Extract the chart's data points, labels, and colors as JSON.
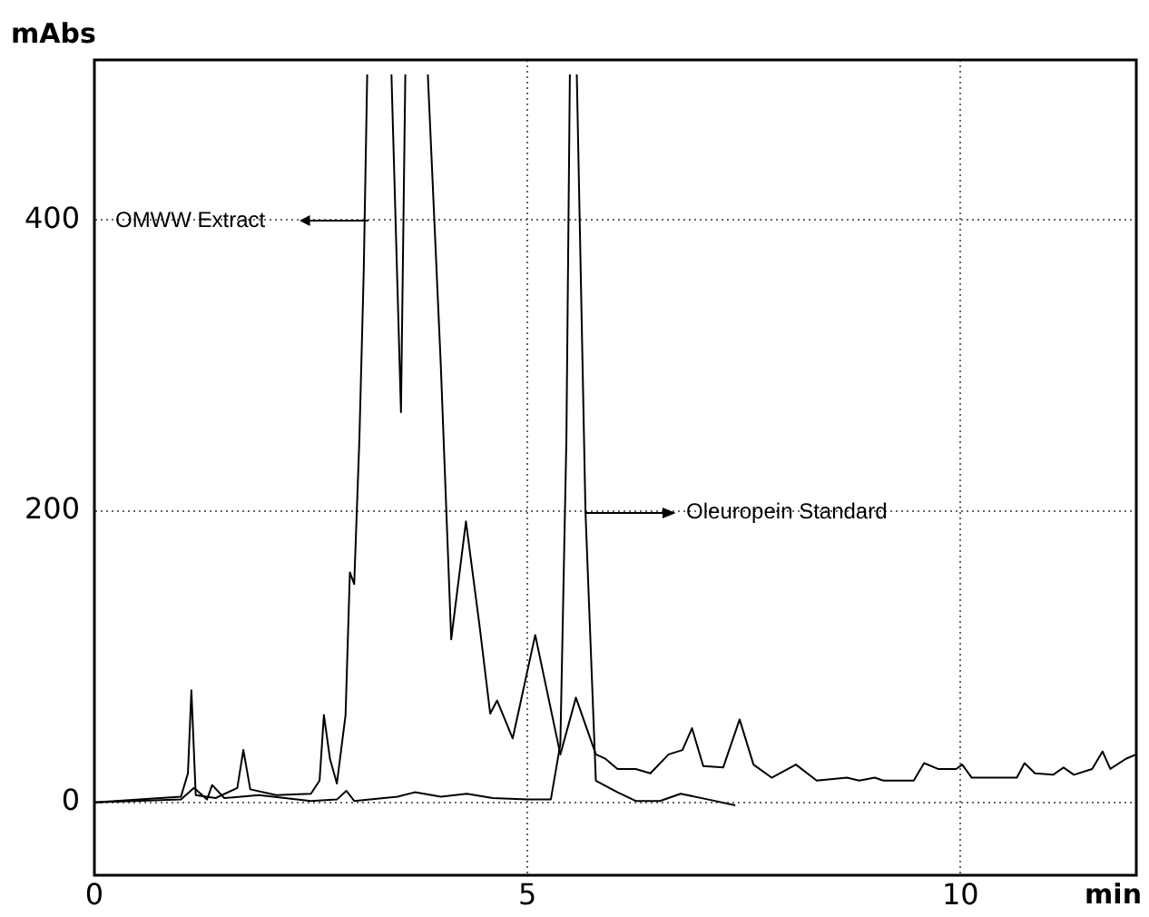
{
  "chart_data": {
    "type": "line",
    "xlabel": "min",
    "ylabel": "mAbs",
    "xlim": [
      0,
      12.03
    ],
    "ylim": [
      -50,
      510
    ],
    "xticks": [
      0,
      5,
      10
    ],
    "yticks": [
      0,
      200,
      400
    ],
    "grid": true,
    "legend": false,
    "annotations": [
      "OMWW Extract",
      "Oleuropein Standard"
    ],
    "marker": "none",
    "line_style": "solid",
    "series": [
      {
        "color": "#000000",
        "x": [
          0,
          1.0,
          1.08,
          1.12,
          1.17,
          1.4,
          1.65,
          1.72,
          1.8,
          2.1,
          2.5,
          2.6,
          2.65,
          2.72,
          2.8,
          2.9,
          2.95,
          3.0,
          3.06,
          3.11,
          3.15,
          3.3,
          3.43,
          3.54,
          3.59,
          3.72,
          3.85,
          4.0,
          4.12,
          4.29,
          4.45,
          4.57,
          4.65,
          4.83,
          5.09,
          5.38,
          5.56,
          5.79,
          5.9,
          6.04,
          6.25,
          6.42,
          6.63,
          6.79,
          6.9,
          7.03,
          7.26,
          7.45,
          7.61,
          7.82,
          8.1,
          8.34,
          8.69,
          8.83,
          9.01,
          9.11,
          9.46,
          9.58,
          9.74,
          9.95,
          10.02,
          10.13,
          10.65,
          10.74,
          10.86,
          11.07,
          11.19,
          11.31,
          11.52,
          11.64,
          11.73,
          11.91,
          12.03
        ],
        "values": [
          0,
          4,
          20,
          77,
          5,
          3,
          10,
          36,
          9,
          5,
          6,
          15,
          60,
          30,
          13,
          60,
          158,
          150,
          250,
          365,
          500,
          null,
          500,
          268,
          500,
          null,
          500,
          300,
          112,
          193,
          120,
          61,
          70,
          44,
          115,
          33,
          72,
          33,
          30,
          23,
          23,
          20,
          33,
          36,
          51,
          25,
          24,
          57,
          26,
          17,
          26,
          15,
          17,
          15,
          17,
          15,
          15,
          27,
          23,
          23,
          26,
          17,
          17,
          27,
          20,
          19,
          24,
          19,
          23,
          35,
          23,
          30,
          33
        ]
      },
      {
        "color": "#000000",
        "x": [
          0,
          1.0,
          1.15,
          1.3,
          1.36,
          1.5,
          1.9,
          2.2,
          2.5,
          2.8,
          2.91,
          3.0,
          3.5,
          3.7,
          4.0,
          4.3,
          4.6,
          5.0,
          5.27,
          5.38,
          5.45,
          5.49,
          5.53,
          5.57,
          5.67,
          5.79,
          6.04,
          6.25,
          6.53,
          6.77,
          7.09,
          7.4
        ],
        "values": [
          0,
          2,
          10,
          2,
          12,
          3,
          5,
          3,
          1,
          2,
          8,
          1,
          4,
          7,
          4,
          6,
          3,
          2,
          2,
          40,
          250,
          500,
          null,
          500,
          200,
          15,
          7,
          1,
          1,
          6,
          2,
          -2
        ]
      }
    ]
  }
}
